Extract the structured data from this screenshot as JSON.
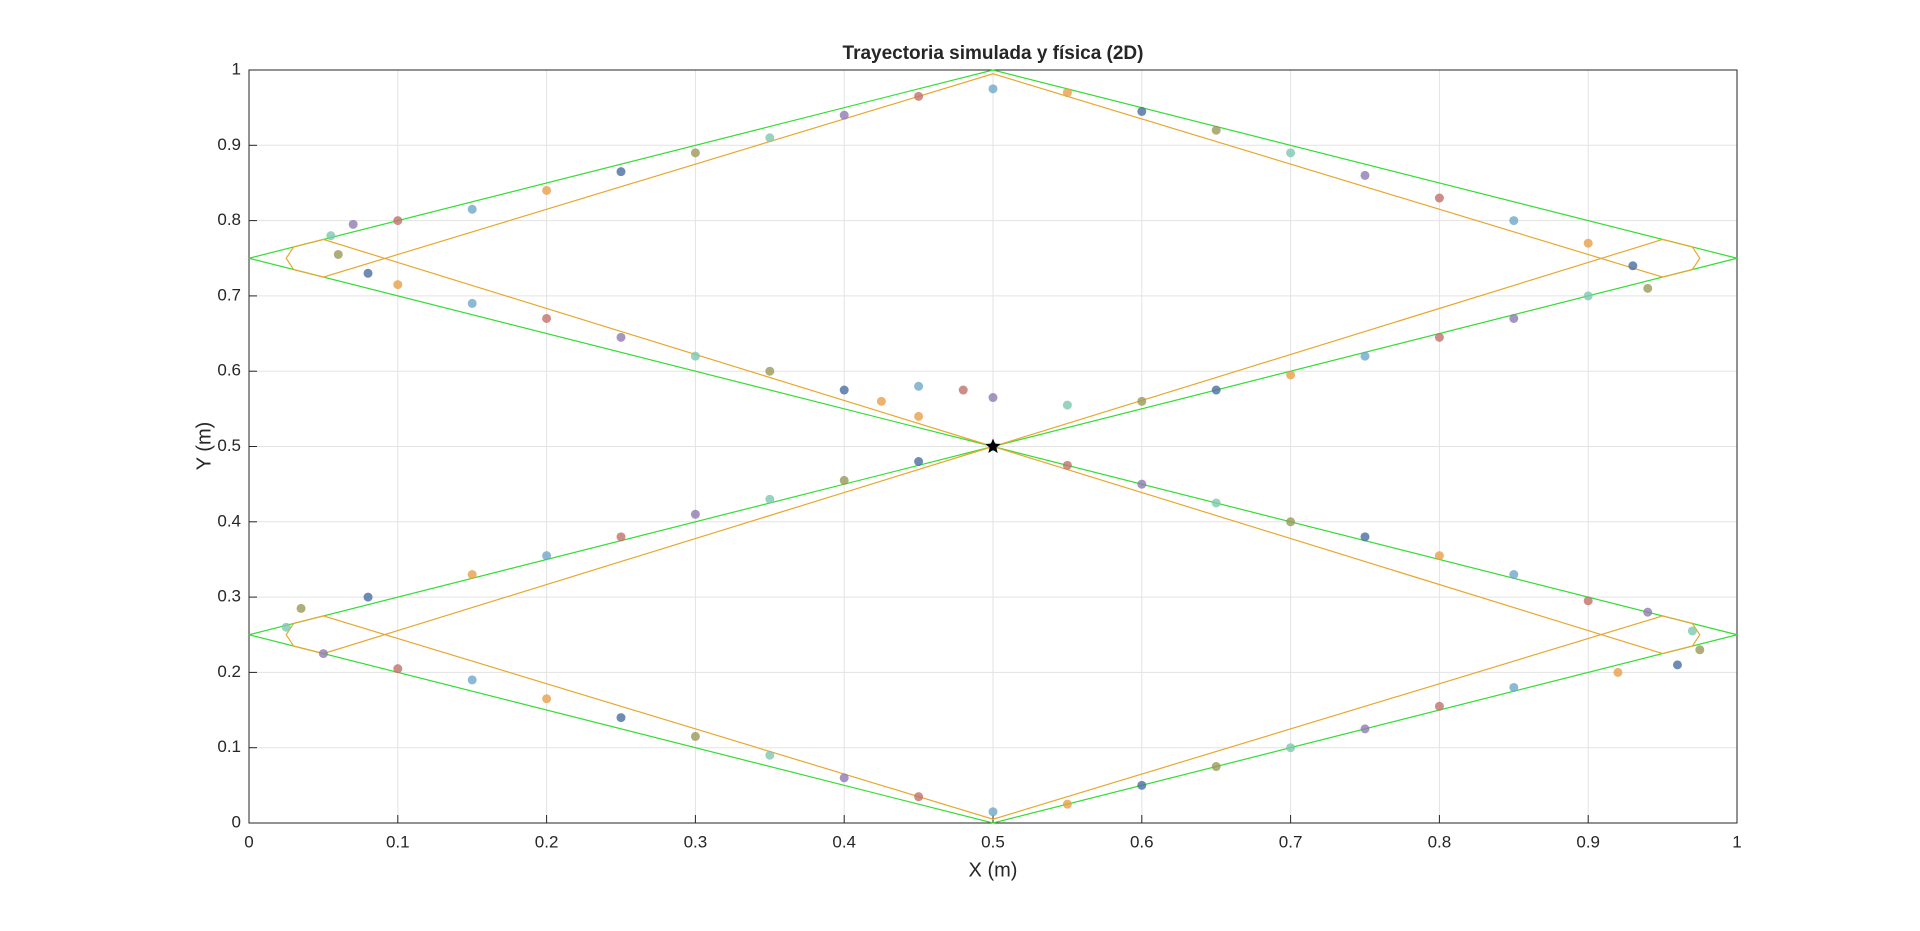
{
  "chart_data": {
    "type": "scatter",
    "title": "Trayectoria simulada y física (2D)",
    "x_label": "X (m)",
    "y_label": "Y (m)",
    "xlim": [
      0,
      1
    ],
    "ylim": [
      0,
      1
    ],
    "xticks": [
      0,
      0.1,
      0.2,
      0.3,
      0.4,
      0.5,
      0.6,
      0.7,
      0.8,
      0.9,
      1
    ],
    "yticks": [
      0,
      0.1,
      0.2,
      0.3,
      0.4,
      0.5,
      0.6,
      0.7,
      0.8,
      0.9,
      1
    ],
    "grid": true,
    "series": [
      {
        "mode": "line",
        "color": "#33dd33",
        "x": [
          0.5,
          0,
          0.5,
          1,
          0.5,
          0,
          0.5,
          1,
          0.5
        ],
        "y": [
          0.5,
          0.25,
          0,
          0.25,
          0.5,
          0.75,
          1,
          0.75,
          0.5
        ]
      },
      {
        "mode": "line",
        "color": "#e8a830",
        "x": [
          0.5,
          0.05,
          0.03,
          0.025,
          0.03,
          0.05,
          0.5,
          0.95,
          0.97,
          0.975,
          0.97,
          0.95,
          0.5,
          0.05,
          0.03,
          0.025,
          0.03,
          0.05,
          0.5,
          0.95,
          0.97,
          0.975,
          0.97,
          0.95,
          0.5
        ],
        "y": [
          0.5,
          0.225,
          0.235,
          0.25,
          0.265,
          0.275,
          0.005,
          0.275,
          0.265,
          0.25,
          0.235,
          0.225,
          0.5,
          0.775,
          0.765,
          0.75,
          0.735,
          0.725,
          0.995,
          0.725,
          0.735,
          0.75,
          0.765,
          0.775,
          0.5
        ]
      },
      {
        "mode": "points",
        "colors": [
          "#e8a04a",
          "#6fa8c8",
          "#c0726b",
          "#8e7bb0",
          "#7fc8b0",
          "#9a9a5a",
          "#4a6fa0"
        ],
        "x": [
          0.425,
          0.45,
          0.48,
          0.5,
          0.55,
          0.6,
          0.65,
          0.7,
          0.75,
          0.8,
          0.85,
          0.9,
          0.94,
          0.93,
          0.9,
          0.85,
          0.8,
          0.75,
          0.7,
          0.65,
          0.6,
          0.55,
          0.5,
          0.45,
          0.4,
          0.35,
          0.3,
          0.25,
          0.2,
          0.15,
          0.1,
          0.07,
          0.055,
          0.06,
          0.08,
          0.1,
          0.15,
          0.2,
          0.25,
          0.3,
          0.35,
          0.4,
          0.45,
          0.5,
          0.55,
          0.6,
          0.65,
          0.7,
          0.75,
          0.8,
          0.85,
          0.9,
          0.94,
          0.97,
          0.975,
          0.96,
          0.92,
          0.85,
          0.8,
          0.75,
          0.7,
          0.65,
          0.6,
          0.55,
          0.5,
          0.45,
          0.4,
          0.35,
          0.3,
          0.25,
          0.2,
          0.15,
          0.1,
          0.05,
          0.025,
          0.035,
          0.08,
          0.15,
          0.2,
          0.25,
          0.3,
          0.35,
          0.4,
          0.45
        ],
        "y": [
          0.56,
          0.58,
          0.575,
          0.565,
          0.555,
          0.56,
          0.575,
          0.595,
          0.62,
          0.645,
          0.67,
          0.7,
          0.71,
          0.74,
          0.77,
          0.8,
          0.83,
          0.86,
          0.89,
          0.92,
          0.945,
          0.97,
          0.975,
          0.965,
          0.94,
          0.91,
          0.89,
          0.865,
          0.84,
          0.815,
          0.8,
          0.795,
          0.78,
          0.755,
          0.73,
          0.715,
          0.69,
          0.67,
          0.645,
          0.62,
          0.6,
          0.575,
          0.54,
          0.5,
          0.475,
          0.45,
          0.425,
          0.4,
          0.38,
          0.355,
          0.33,
          0.295,
          0.28,
          0.255,
          0.23,
          0.21,
          0.2,
          0.18,
          0.155,
          0.125,
          0.1,
          0.075,
          0.05,
          0.025,
          0.015,
          0.035,
          0.06,
          0.09,
          0.115,
          0.14,
          0.165,
          0.19,
          0.205,
          0.225,
          0.26,
          0.285,
          0.3,
          0.33,
          0.355,
          0.38,
          0.41,
          0.43,
          0.455,
          0.48
        ]
      },
      {
        "mode": "star",
        "color": "#000000",
        "x": [
          0.5
        ],
        "y": [
          0.5
        ]
      }
    ]
  }
}
